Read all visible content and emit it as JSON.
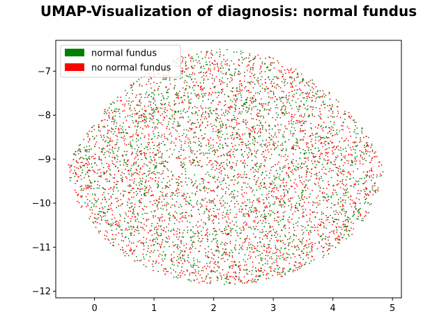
{
  "chart_data": {
    "type": "scatter",
    "title": "UMAP-Visualization of diagnosis: normal fundus",
    "xlabel": "",
    "ylabel": "",
    "xlim": [
      -0.65,
      5.15
    ],
    "ylim": [
      -12.15,
      -6.3
    ],
    "x_ticks": [
      0,
      1,
      2,
      3,
      4,
      5
    ],
    "x_tick_labels": [
      "0",
      "1",
      "2",
      "3",
      "4",
      "5"
    ],
    "y_ticks": [
      -12,
      -11,
      -10,
      -9,
      -8,
      -7
    ],
    "y_tick_labels": [
      "−12",
      "−11",
      "−10",
      "−9",
      "−8",
      "−7"
    ],
    "legend": {
      "placement": "top-left"
    },
    "cloud_bounds": {
      "x_range": [
        -0.45,
        4.85
      ],
      "y_range": [
        -11.85,
        -6.5
      ]
    },
    "series": [
      {
        "name": "normal fundus",
        "color": "#008000",
        "approx_points": 2400
      },
      {
        "name": "no normal fundus",
        "color": "#ff0000",
        "approx_points": 2800
      }
    ],
    "grid": false
  }
}
